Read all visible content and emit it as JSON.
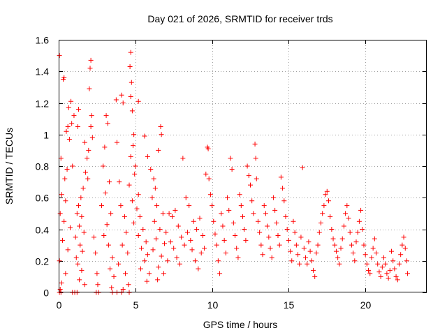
{
  "chart_data": {
    "type": "scatter",
    "title": "Day 021 of 2026, SRMTID for receiver trds",
    "xlabel": "GPS time / hours",
    "ylabel": "SRMTID / TECUs",
    "xlim": [
      0,
      24
    ],
    "ylim": [
      0,
      1.6
    ],
    "xticks": [
      0,
      5,
      10,
      15,
      20
    ],
    "xtick_labels": [
      "0",
      "5",
      "10",
      "15",
      "20"
    ],
    "yticks": [
      0,
      0.2,
      0.4,
      0.6,
      0.8,
      1.0,
      1.2,
      1.4,
      1.6
    ],
    "ytick_labels": [
      "0",
      "0.2",
      "0.4",
      "0.6",
      "0.8",
      "1",
      "1.2",
      "1.4",
      "1.6"
    ],
    "grid": true,
    "marker": "+",
    "color": "#ff0000",
    "series": [
      {
        "name": "SRMTID",
        "points": [
          [
            0.05,
            1.5
          ],
          [
            0.3,
            1.35
          ],
          [
            0.35,
            1.36
          ],
          [
            0.8,
            1.21
          ],
          [
            0.65,
            1.17
          ],
          [
            1.3,
            1.16
          ],
          [
            1.0,
            1.12
          ],
          [
            0.6,
            1.05
          ],
          [
            0.85,
            1.07
          ],
          [
            1.25,
            1.05
          ],
          [
            0.5,
            1.02
          ],
          [
            0.7,
            0.97
          ],
          [
            1.7,
            0.95
          ],
          [
            0.15,
            0.85
          ],
          [
            0.9,
            0.8
          ],
          [
            0.55,
            0.78
          ],
          [
            0.4,
            0.72
          ],
          [
            0.2,
            0.62
          ],
          [
            0.45,
            0.58
          ],
          [
            0.1,
            0.5
          ],
          [
            0.35,
            0.45
          ],
          [
            0.75,
            0.41
          ],
          [
            0.25,
            0.33
          ],
          [
            0.6,
            0.27
          ],
          [
            0.05,
            0.2
          ],
          [
            0.45,
            0.12
          ],
          [
            0.2,
            0.06
          ],
          [
            0.1,
            0.02
          ],
          [
            0.05,
            0.0
          ],
          [
            0.15,
            0.0
          ],
          [
            0.9,
            0.0
          ],
          [
            1.05,
            0.0
          ],
          [
            2.1,
            1.47
          ],
          [
            2.05,
            1.42
          ],
          [
            2.0,
            1.29
          ],
          [
            2.15,
            1.12
          ],
          [
            2.1,
            1.05
          ],
          [
            2.2,
            0.98
          ],
          [
            1.95,
            0.9
          ],
          [
            1.85,
            0.85
          ],
          [
            1.75,
            0.76
          ],
          [
            1.9,
            0.72
          ],
          [
            1.6,
            0.66
          ],
          [
            1.45,
            0.6
          ],
          [
            1.3,
            0.55
          ],
          [
            1.2,
            0.5
          ],
          [
            1.5,
            0.48
          ],
          [
            1.35,
            0.42
          ],
          [
            1.65,
            0.38
          ],
          [
            1.1,
            0.35
          ],
          [
            1.4,
            0.3
          ],
          [
            1.55,
            0.26
          ],
          [
            1.15,
            0.22
          ],
          [
            1.25,
            0.18
          ],
          [
            1.5,
            0.14
          ],
          [
            1.35,
            0.08
          ],
          [
            1.7,
            0.05
          ],
          [
            1.2,
            0.0
          ],
          [
            2.3,
            0.35
          ],
          [
            2.4,
            0.25
          ],
          [
            2.5,
            0.12
          ],
          [
            2.55,
            0.05
          ],
          [
            2.45,
            0.0
          ],
          [
            2.6,
            0.0
          ],
          [
            3.1,
            1.12
          ],
          [
            3.2,
            1.07
          ],
          [
            3.0,
            0.92
          ],
          [
            2.9,
            0.8
          ],
          [
            3.3,
            0.7
          ],
          [
            3.05,
            0.63
          ],
          [
            2.8,
            0.55
          ],
          [
            3.4,
            0.5
          ],
          [
            3.15,
            0.43
          ],
          [
            2.95,
            0.36
          ],
          [
            3.25,
            0.3
          ],
          [
            3.5,
            0.22
          ],
          [
            3.35,
            0.15
          ],
          [
            3.6,
            0.1
          ],
          [
            3.45,
            0.03
          ],
          [
            3.5,
            0.0
          ],
          [
            3.8,
            0.0
          ],
          [
            4.1,
            0.0
          ],
          [
            4.2,
            0.02
          ],
          [
            3.75,
            1.22
          ],
          [
            4.1,
            1.25
          ],
          [
            4.2,
            1.2
          ],
          [
            3.8,
            0.95
          ],
          [
            3.95,
            0.7
          ],
          [
            4.05,
            0.55
          ],
          [
            4.3,
            0.48
          ],
          [
            4.4,
            0.38
          ],
          [
            4.15,
            0.3
          ],
          [
            4.5,
            0.25
          ],
          [
            3.9,
            0.18
          ],
          [
            4.35,
            0.12
          ],
          [
            4.55,
            0.05
          ],
          [
            4.6,
            0.0
          ],
          [
            4.7,
            1.52
          ],
          [
            4.65,
            1.43
          ],
          [
            4.75,
            1.33
          ],
          [
            4.7,
            1.24
          ],
          [
            4.8,
            1.15
          ],
          [
            4.9,
            1.0
          ],
          [
            4.85,
            0.93
          ],
          [
            4.7,
            0.86
          ],
          [
            5.0,
            0.8
          ],
          [
            4.95,
            0.75
          ],
          [
            4.6,
            0.68
          ],
          [
            5.2,
            0.62
          ],
          [
            4.8,
            0.58
          ],
          [
            5.1,
            0.53
          ],
          [
            5.3,
            0.48
          ],
          [
            4.9,
            0.44
          ],
          [
            5.5,
            0.4
          ],
          [
            5.2,
            0.36
          ],
          [
            5.7,
            0.32
          ],
          [
            5.4,
            0.28
          ],
          [
            5.8,
            0.24
          ],
          [
            5.6,
            0.2
          ],
          [
            5.35,
            0.15
          ],
          [
            5.9,
            0.12
          ],
          [
            5.75,
            0.07
          ],
          [
            5.2,
            1.21
          ],
          [
            5.6,
            0.99
          ],
          [
            5.8,
            0.86
          ],
          [
            6.0,
            0.78
          ],
          [
            6.2,
            0.72
          ],
          [
            6.3,
            0.66
          ],
          [
            6.5,
            0.9
          ],
          [
            6.65,
            1.05
          ],
          [
            6.7,
            1.0
          ],
          [
            6.1,
            0.6
          ],
          [
            6.4,
            0.55
          ],
          [
            6.8,
            0.5
          ],
          [
            6.25,
            0.45
          ],
          [
            6.6,
            0.4
          ],
          [
            7.0,
            0.38
          ],
          [
            6.35,
            0.34
          ],
          [
            6.9,
            0.31
          ],
          [
            6.15,
            0.27
          ],
          [
            6.7,
            0.23
          ],
          [
            7.1,
            0.2
          ],
          [
            6.5,
            0.16
          ],
          [
            6.85,
            0.12
          ],
          [
            6.45,
            0.08
          ],
          [
            7.2,
            0.5
          ],
          [
            7.4,
            0.48
          ],
          [
            7.6,
            0.52
          ],
          [
            7.8,
            0.42
          ],
          [
            8.0,
            0.35
          ],
          [
            7.3,
            0.32
          ],
          [
            7.5,
            0.28
          ],
          [
            7.7,
            0.22
          ],
          [
            7.9,
            0.18
          ],
          [
            8.2,
            0.3
          ],
          [
            8.4,
            0.38
          ],
          [
            8.6,
            0.33
          ],
          [
            8.8,
            0.45
          ],
          [
            9.0,
            0.4
          ],
          [
            8.3,
            0.6
          ],
          [
            8.1,
            0.85
          ],
          [
            8.5,
            0.55
          ],
          [
            8.7,
            0.27
          ],
          [
            8.9,
            0.2
          ],
          [
            9.2,
            0.47
          ],
          [
            9.4,
            0.36
          ],
          [
            9.5,
            0.28
          ],
          [
            9.6,
            0.75
          ],
          [
            9.7,
            0.92
          ],
          [
            9.75,
            0.91
          ],
          [
            9.8,
            0.72
          ],
          [
            9.9,
            0.62
          ],
          [
            10.0,
            0.55
          ],
          [
            10.1,
            0.45
          ],
          [
            10.2,
            0.37
          ],
          [
            10.3,
            0.3
          ],
          [
            10.4,
            0.2
          ],
          [
            10.5,
            0.12
          ],
          [
            9.3,
            0.25
          ],
          [
            9.1,
            0.15
          ],
          [
            10.6,
            0.5
          ],
          [
            10.7,
            0.42
          ],
          [
            10.8,
            0.33
          ],
          [
            10.9,
            0.25
          ],
          [
            11.0,
            0.6
          ],
          [
            11.1,
            0.52
          ],
          [
            11.2,
            0.85
          ],
          [
            11.3,
            0.78
          ],
          [
            11.4,
            0.44
          ],
          [
            11.5,
            0.36
          ],
          [
            11.6,
            0.28
          ],
          [
            11.7,
            0.22
          ],
          [
            11.8,
            0.62
          ],
          [
            11.9,
            0.55
          ],
          [
            12.0,
            0.48
          ],
          [
            12.1,
            0.4
          ],
          [
            12.2,
            0.33
          ],
          [
            12.3,
            0.8
          ],
          [
            12.4,
            0.74
          ],
          [
            12.5,
            0.68
          ],
          [
            12.6,
            0.58
          ],
          [
            12.7,
            0.5
          ],
          [
            12.8,
            0.94
          ],
          [
            12.85,
            0.85
          ],
          [
            12.9,
            0.72
          ],
          [
            13.0,
            0.45
          ],
          [
            13.1,
            0.38
          ],
          [
            13.2,
            0.3
          ],
          [
            13.3,
            0.24
          ],
          [
            13.4,
            0.55
          ],
          [
            13.5,
            0.5
          ],
          [
            13.6,
            0.42
          ],
          [
            13.7,
            0.35
          ],
          [
            13.8,
            0.28
          ],
          [
            13.9,
            0.22
          ],
          [
            14.0,
            0.6
          ],
          [
            14.1,
            0.52
          ],
          [
            14.2,
            0.44
          ],
          [
            14.3,
            0.36
          ],
          [
            14.4,
            0.3
          ],
          [
            14.5,
            0.73
          ],
          [
            14.6,
            0.66
          ],
          [
            14.7,
            0.58
          ],
          [
            14.8,
            0.48
          ],
          [
            14.9,
            0.4
          ],
          [
            15.0,
            0.33
          ],
          [
            15.1,
            0.26
          ],
          [
            15.2,
            0.2
          ],
          [
            15.3,
            0.45
          ],
          [
            15.4,
            0.38
          ],
          [
            15.5,
            0.3
          ],
          [
            15.6,
            0.24
          ],
          [
            15.7,
            0.18
          ],
          [
            15.8,
            0.35
          ],
          [
            15.9,
            0.79
          ],
          [
            16.0,
            0.28
          ],
          [
            16.1,
            0.22
          ],
          [
            16.2,
            0.18
          ],
          [
            16.3,
            0.32
          ],
          [
            16.4,
            0.26
          ],
          [
            16.5,
            0.2
          ],
          [
            16.6,
            0.14
          ],
          [
            16.7,
            0.1
          ],
          [
            16.8,
            0.25
          ],
          [
            16.9,
            0.3
          ],
          [
            17.0,
            0.38
          ],
          [
            17.1,
            0.44
          ],
          [
            17.2,
            0.5
          ],
          [
            17.3,
            0.55
          ],
          [
            17.4,
            0.62
          ],
          [
            17.5,
            0.64
          ],
          [
            17.6,
            0.58
          ],
          [
            17.7,
            0.48
          ],
          [
            17.8,
            0.4
          ],
          [
            17.9,
            0.34
          ],
          [
            18.0,
            0.3
          ],
          [
            18.1,
            0.26
          ],
          [
            18.2,
            0.22
          ],
          [
            18.3,
            0.18
          ],
          [
            18.4,
            0.28
          ],
          [
            18.5,
            0.34
          ],
          [
            18.6,
            0.42
          ],
          [
            18.7,
            0.5
          ],
          [
            18.8,
            0.55
          ],
          [
            18.9,
            0.47
          ],
          [
            19.0,
            0.38
          ],
          [
            19.1,
            0.3
          ],
          [
            19.2,
            0.25
          ],
          [
            19.3,
            0.2
          ],
          [
            19.4,
            0.32
          ],
          [
            19.5,
            0.38
          ],
          [
            19.6,
            0.45
          ],
          [
            19.7,
            0.52
          ],
          [
            19.8,
            0.4
          ],
          [
            19.9,
            0.3
          ],
          [
            20.0,
            0.24
          ],
          [
            20.1,
            0.18
          ],
          [
            20.2,
            0.14
          ],
          [
            20.3,
            0.12
          ],
          [
            20.4,
            0.22
          ],
          [
            20.5,
            0.28
          ],
          [
            20.6,
            0.34
          ],
          [
            20.7,
            0.25
          ],
          [
            20.8,
            0.18
          ],
          [
            20.9,
            0.13
          ],
          [
            21.0,
            0.1
          ],
          [
            21.1,
            0.16
          ],
          [
            21.2,
            0.22
          ],
          [
            21.3,
            0.18
          ],
          [
            21.4,
            0.12
          ],
          [
            21.5,
            0.09
          ],
          [
            21.6,
            0.14
          ],
          [
            21.7,
            0.26
          ],
          [
            21.8,
            0.2
          ],
          [
            21.9,
            0.15
          ],
          [
            22.0,
            0.1
          ],
          [
            22.1,
            0.08
          ],
          [
            22.2,
            0.18
          ],
          [
            22.3,
            0.24
          ],
          [
            22.4,
            0.3
          ],
          [
            22.5,
            0.35
          ],
          [
            22.6,
            0.28
          ],
          [
            22.7,
            0.2
          ],
          [
            22.75,
            0.12
          ]
        ]
      }
    ]
  }
}
